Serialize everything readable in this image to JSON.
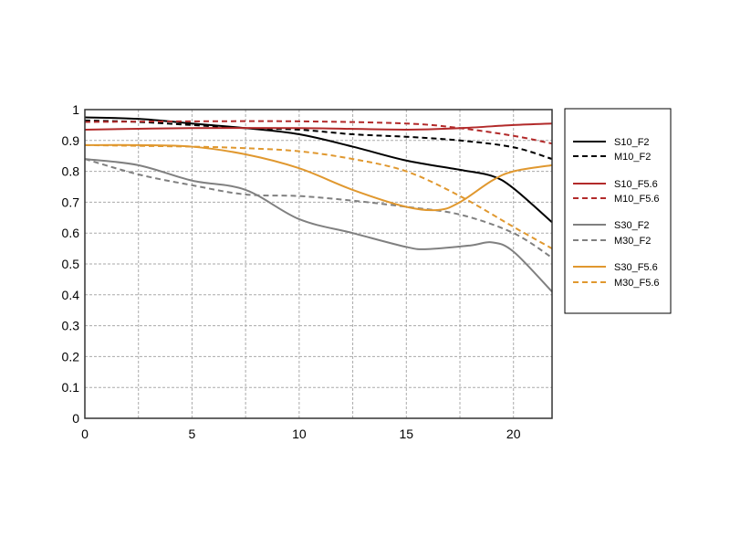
{
  "chart_data": {
    "type": "line",
    "title": "",
    "xlabel": "",
    "ylabel": "",
    "xlim": [
      0,
      21.8
    ],
    "ylim": [
      0,
      1
    ],
    "grid": true,
    "legend_position": "right",
    "x_ticks": [
      "0",
      "5",
      "10",
      "15",
      "20"
    ],
    "x_tick_values": [
      0,
      5,
      10,
      15,
      20
    ],
    "y_ticks": [
      "0",
      "0.1",
      "0.2",
      "0.3",
      "0.4",
      "0.5",
      "0.6",
      "0.7",
      "0.8",
      "0.9",
      "1"
    ],
    "y_tick_values": [
      0,
      0.1,
      0.2,
      0.3,
      0.4,
      0.5,
      0.6,
      0.7,
      0.8,
      0.9,
      1
    ],
    "series": [
      {
        "name": "S10_F2",
        "color": "#000000",
        "dashed": false,
        "x": [
          0,
          2.5,
          5,
          7.5,
          10,
          12.5,
          15,
          17.5,
          19,
          20,
          21.8
        ],
        "y": [
          0.975,
          0.97,
          0.955,
          0.94,
          0.92,
          0.88,
          0.835,
          0.805,
          0.785,
          0.745,
          0.635
        ]
      },
      {
        "name": "M10_F2",
        "color": "#000000",
        "dashed": true,
        "x": [
          0,
          2.5,
          5,
          7.5,
          10,
          12.5,
          15,
          17.5,
          20,
          21.8
        ],
        "y": [
          0.965,
          0.96,
          0.95,
          0.94,
          0.935,
          0.92,
          0.912,
          0.9,
          0.878,
          0.84
        ]
      },
      {
        "name": "S10_F5.6",
        "color": "#b22a2a",
        "dashed": false,
        "x": [
          0,
          5,
          10,
          15,
          17.5,
          20,
          21.8
        ],
        "y": [
          0.935,
          0.94,
          0.94,
          0.935,
          0.94,
          0.95,
          0.955
        ]
      },
      {
        "name": "M10_F5.6",
        "color": "#b22a2a",
        "dashed": true,
        "x": [
          0,
          5,
          10,
          15,
          17.5,
          20,
          21.8
        ],
        "y": [
          0.96,
          0.962,
          0.962,
          0.955,
          0.94,
          0.915,
          0.89
        ]
      },
      {
        "name": "S30_F2",
        "color": "#808080",
        "dashed": false,
        "x": [
          0,
          2.5,
          5,
          7.5,
          10,
          12.5,
          15,
          16,
          18,
          19,
          20,
          21.8
        ],
        "y": [
          0.84,
          0.82,
          0.77,
          0.74,
          0.645,
          0.6,
          0.555,
          0.548,
          0.56,
          0.57,
          0.54,
          0.41
        ]
      },
      {
        "name": "M30_F2",
        "color": "#808080",
        "dashed": true,
        "x": [
          0,
          2.5,
          5,
          7.5,
          10,
          12.5,
          15,
          17.5,
          20,
          21.8
        ],
        "y": [
          0.84,
          0.79,
          0.755,
          0.725,
          0.72,
          0.705,
          0.685,
          0.66,
          0.6,
          0.52
        ]
      },
      {
        "name": "S30_F5.6",
        "color": "#e0982f",
        "dashed": false,
        "x": [
          0,
          2.5,
          5,
          7.5,
          10,
          12.5,
          15,
          16.5,
          17.5,
          19,
          20,
          21.8
        ],
        "y": [
          0.885,
          0.885,
          0.88,
          0.855,
          0.81,
          0.74,
          0.685,
          0.675,
          0.7,
          0.77,
          0.8,
          0.82
        ]
      },
      {
        "name": "M30_F5.6",
        "color": "#e0982f",
        "dashed": true,
        "x": [
          0,
          5,
          7.5,
          10,
          12.5,
          15,
          17.5,
          20,
          21.8
        ],
        "y": [
          0.885,
          0.88,
          0.875,
          0.865,
          0.84,
          0.8,
          0.72,
          0.62,
          0.55
        ]
      }
    ]
  }
}
